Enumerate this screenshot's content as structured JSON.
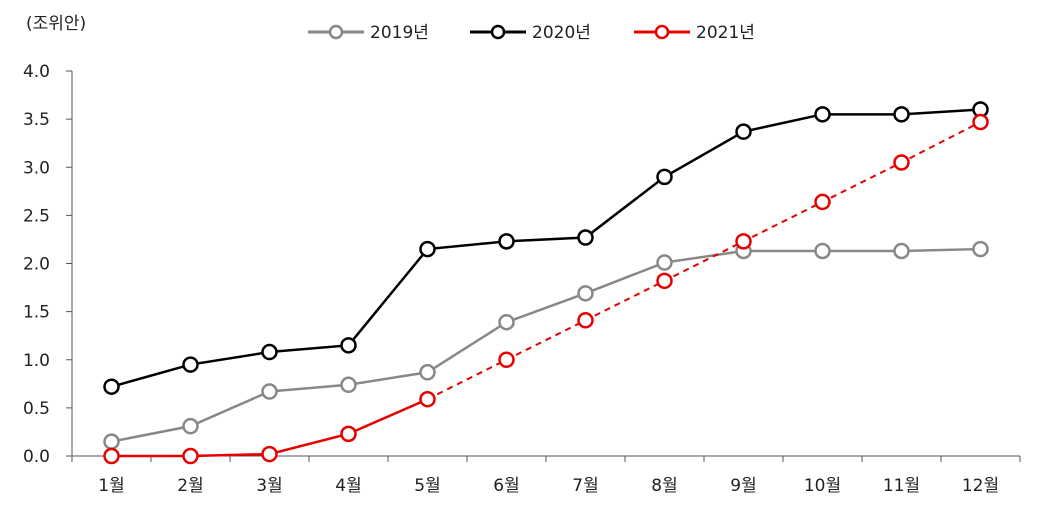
{
  "chart_data": {
    "type": "line",
    "unit_label": "(조위안)",
    "categories": [
      "1월",
      "2월",
      "3월",
      "4월",
      "5월",
      "6월",
      "7월",
      "8월",
      "9월",
      "10월",
      "11월",
      "12월"
    ],
    "ylim": [
      0,
      4
    ],
    "yticks": [
      "0.0",
      "0.5",
      "1.0",
      "1.5",
      "2.0",
      "2.5",
      "3.0",
      "3.5",
      "4.0"
    ],
    "grid": false,
    "legend_position": "top-center",
    "series": [
      {
        "name": "2019년",
        "color": "#888888",
        "dashed_from": null,
        "values": [
          0.15,
          0.31,
          0.67,
          0.74,
          0.87,
          1.39,
          1.69,
          2.01,
          2.13,
          2.13,
          2.13,
          2.15
        ]
      },
      {
        "name": "2020년",
        "color": "#000000",
        "dashed_from": null,
        "values": [
          0.72,
          0.95,
          1.08,
          1.15,
          2.15,
          2.23,
          2.27,
          2.9,
          3.37,
          3.55,
          3.55,
          3.6
        ]
      },
      {
        "name": "2021년",
        "color": "#e60000",
        "dashed_from": 4,
        "values": [
          0.0,
          0.0,
          0.02,
          0.23,
          0.59,
          1.0,
          1.41,
          1.82,
          2.23,
          2.64,
          3.05,
          3.47
        ]
      }
    ]
  }
}
